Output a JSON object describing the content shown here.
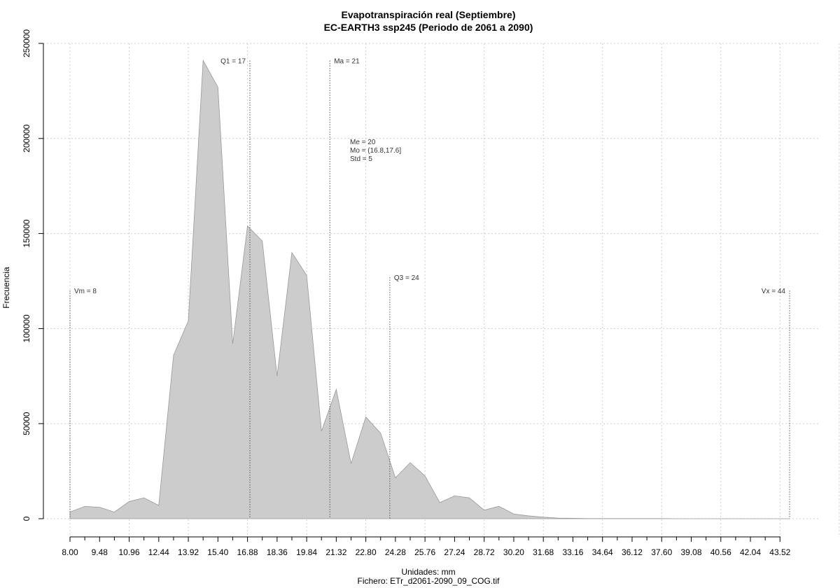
{
  "chart_data": {
    "type": "area",
    "title": "Evapotranspiración real (Septiembre)",
    "subtitle": "EC-EARTH3 ssp245 (Periodo de 2061 a 2090)",
    "xlabel": "Unidades: mm",
    "ylabel": "Frecuencia",
    "caption": "Fichero: ETr_d2061-2090_09_COG.tif",
    "xlim": [
      8.0,
      44.0
    ],
    "ylim": [
      0,
      250000
    ],
    "x_ticks": [
      "8.00",
      "9.48",
      "10.96",
      "12.44",
      "13.92",
      "15.40",
      "16.88",
      "18.36",
      "19.84",
      "21.32",
      "22.80",
      "24.28",
      "25.76",
      "27.24",
      "28.72",
      "30.20",
      "31.68",
      "33.16",
      "34.64",
      "36.12",
      "37.60",
      "39.08",
      "40.56",
      "42.04",
      "43.52"
    ],
    "y_ticks": [
      "0",
      "50000",
      "100000",
      "150000",
      "200000",
      "250000"
    ],
    "grid": true,
    "color": "#cccccc",
    "edge_color": "#999999",
    "series": [
      {
        "x": [
          8.0,
          8.74,
          9.48,
          10.22,
          10.96,
          11.7,
          12.44,
          13.18,
          13.92,
          14.66,
          15.4,
          16.14,
          16.88,
          17.62,
          18.36,
          19.1,
          19.84,
          20.58,
          21.32,
          22.06,
          22.8,
          23.54,
          24.28,
          25.02,
          25.76,
          26.5,
          27.24,
          27.98,
          28.72,
          29.46,
          30.2,
          30.94,
          31.68,
          32.42,
          33.16,
          33.9,
          34.64,
          35.38,
          36.12,
          36.86,
          37.6,
          38.34,
          39.08,
          39.82,
          40.56,
          41.3,
          42.04,
          42.78,
          43.52,
          44.0
        ],
        "values": [
          3500,
          6500,
          6000,
          3500,
          9000,
          11000,
          7000,
          86000,
          104000,
          241000,
          227000,
          92000,
          154000,
          146000,
          75000,
          140000,
          128000,
          46000,
          68000,
          29000,
          53500,
          45000,
          21500,
          29500,
          22500,
          8500,
          12000,
          11000,
          4500,
          6500,
          2500,
          1500,
          800,
          300,
          200,
          100,
          100,
          100,
          100,
          100,
          100,
          0,
          0,
          0,
          0,
          0,
          0,
          0,
          0,
          0
        ]
      }
    ],
    "markers": [
      {
        "x": 8,
        "label": "Vm = 8",
        "y_top": 120000,
        "label_side": "right"
      },
      {
        "x": 17,
        "label": "Q1 = 17",
        "y_top": 241000,
        "label_side": "left"
      },
      {
        "x": 21,
        "label": "Ma = 21",
        "y_top": 241000,
        "label_side": "right"
      },
      {
        "x": 24,
        "label": "Q3 = 24",
        "y_top": 127000,
        "label_side": "right"
      },
      {
        "x": 44,
        "label": "Vx = 44",
        "y_top": 120000,
        "label_side": "left"
      }
    ],
    "stats_text": [
      "Me = 20",
      "Mo = (16.8,17.6]",
      "Std = 5"
    ]
  }
}
